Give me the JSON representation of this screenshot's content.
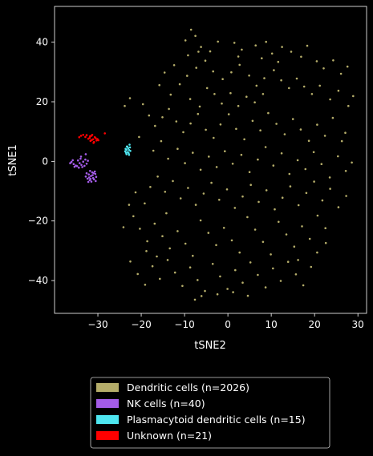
{
  "chart_data": {
    "type": "scatter",
    "title": "",
    "xlabel": "tSNE2",
    "ylabel": "tSNE1",
    "xlim": [
      -40,
      32
    ],
    "ylim": [
      -51,
      52
    ],
    "xticks": [
      -30,
      -20,
      -10,
      0,
      10,
      20,
      30
    ],
    "yticks": [
      -40,
      -20,
      0,
      20,
      40
    ],
    "grid": false,
    "background": "#000000",
    "legend_position": "bottom-center",
    "series": [
      {
        "name": "Dendritic cells (n=2026)",
        "color": "#b5ad6a",
        "count": 2026,
        "points": [
          [
            -8.5,
            44.2
          ],
          [
            -7.5,
            42.1
          ],
          [
            -9.8,
            40.6
          ],
          [
            -6.2,
            38.4
          ],
          [
            -4.1,
            36.9
          ],
          [
            -2.3,
            40.2
          ],
          [
            1.5,
            39.8
          ],
          [
            3.2,
            37.5
          ],
          [
            6.4,
            38.9
          ],
          [
            8.8,
            40.1
          ],
          [
            10.2,
            36.2
          ],
          [
            12.5,
            38.4
          ],
          [
            14.6,
            36.8
          ],
          [
            16.9,
            35.1
          ],
          [
            18.3,
            38.8
          ],
          [
            20.5,
            33.6
          ],
          [
            22.1,
            31.2
          ],
          [
            24.3,
            33.9
          ],
          [
            26.1,
            29.4
          ],
          [
            27.6,
            31.8
          ],
          [
            -12.4,
            32.3
          ],
          [
            -14.6,
            29.8
          ],
          [
            -15.8,
            25.6
          ],
          [
            -13.2,
            22.4
          ],
          [
            -11.1,
            25.9
          ],
          [
            -9.4,
            28.7
          ],
          [
            -7.3,
            31.4
          ],
          [
            -5.2,
            33.8
          ],
          [
            -3.4,
            30.2
          ],
          [
            -1.2,
            27.6
          ],
          [
            0.8,
            29.9
          ],
          [
            2.7,
            32.4
          ],
          [
            4.9,
            28.8
          ],
          [
            6.6,
            25.4
          ],
          [
            8.4,
            27.9
          ],
          [
            10.6,
            30.6
          ],
          [
            12.3,
            27.2
          ],
          [
            14.1,
            24.6
          ],
          [
            15.9,
            27.8
          ],
          [
            17.6,
            25.1
          ],
          [
            19.4,
            22.6
          ],
          [
            21.2,
            25.4
          ],
          [
            23.6,
            20.8
          ],
          [
            25.5,
            23.7
          ],
          [
            27.8,
            18.6
          ],
          [
            28.9,
            21.9
          ],
          [
            -18.2,
            15.4
          ],
          [
            -16.8,
            11.9
          ],
          [
            -15.1,
            14.8
          ],
          [
            -13.6,
            17.6
          ],
          [
            -11.9,
            13.4
          ],
          [
            -10.3,
            9.8
          ],
          [
            -8.6,
            12.7
          ],
          [
            -6.9,
            15.9
          ],
          [
            -5.1,
            10.6
          ],
          [
            -3.3,
            7.9
          ],
          [
            -1.7,
            12.4
          ],
          [
            0.2,
            15.8
          ],
          [
            1.9,
            10.9
          ],
          [
            3.8,
            7.4
          ],
          [
            5.7,
            13.6
          ],
          [
            7.5,
            10.4
          ],
          [
            9.3,
            16.2
          ],
          [
            11.2,
            12.6
          ],
          [
            13.1,
            9.1
          ],
          [
            15.0,
            14.2
          ],
          [
            16.8,
            10.7
          ],
          [
            18.7,
            6.9
          ],
          [
            20.6,
            12.3
          ],
          [
            22.4,
            8.6
          ],
          [
            24.2,
            14.6
          ],
          [
            26.3,
            6.8
          ],
          [
            27.1,
            9.6
          ],
          [
            -23.8,
            18.6
          ],
          [
            -22.6,
            21.2
          ],
          [
            -19.6,
            19.2
          ],
          [
            -20.5,
            8.2
          ],
          [
            -17.2,
            3.6
          ],
          [
            -15.4,
            6.8
          ],
          [
            -13.8,
            0.9
          ],
          [
            -11.6,
            4.2
          ],
          [
            -9.9,
            -0.6
          ],
          [
            -8.1,
            2.9
          ],
          [
            -6.3,
            -2.8
          ],
          [
            -4.4,
            1.6
          ],
          [
            -2.6,
            -1.9
          ],
          [
            -0.7,
            3.4
          ],
          [
            1.1,
            -0.8
          ],
          [
            3.1,
            2.2
          ],
          [
            5.0,
            -3.6
          ],
          [
            6.9,
            0.6
          ],
          [
            8.7,
            4.8
          ],
          [
            10.5,
            -1.4
          ],
          [
            12.4,
            2.7
          ],
          [
            14.2,
            -4.2
          ],
          [
            16.1,
            0.4
          ],
          [
            17.9,
            -2.6
          ],
          [
            19.8,
            3.1
          ],
          [
            21.6,
            -0.9
          ],
          [
            23.5,
            -5.4
          ],
          [
            25.4,
            1.7
          ],
          [
            27.2,
            -3.2
          ],
          [
            28.6,
            -0.4
          ],
          [
            -17.9,
            -8.6
          ],
          [
            -16.2,
            -5.1
          ],
          [
            -14.5,
            -10.2
          ],
          [
            -12.7,
            -6.6
          ],
          [
            -10.9,
            -12.4
          ],
          [
            -9.2,
            -8.9
          ],
          [
            -7.4,
            -14.6
          ],
          [
            -5.6,
            -10.8
          ],
          [
            -3.8,
            -7.2
          ],
          [
            -2.0,
            -12.9
          ],
          [
            -0.2,
            -9.4
          ],
          [
            1.6,
            -15.6
          ],
          [
            3.4,
            -11.8
          ],
          [
            5.3,
            -7.9
          ],
          [
            7.1,
            -13.6
          ],
          [
            8.9,
            -9.7
          ],
          [
            10.8,
            -16.1
          ],
          [
            12.6,
            -12.2
          ],
          [
            14.4,
            -8.4
          ],
          [
            16.3,
            -14.7
          ],
          [
            18.1,
            -10.6
          ],
          [
            19.9,
            -6.8
          ],
          [
            21.8,
            -13.1
          ],
          [
            23.6,
            -9.2
          ],
          [
            25.5,
            -15.4
          ],
          [
            27.3,
            -11.6
          ],
          [
            -21.8,
            -18.4
          ],
          [
            -20.3,
            -22.6
          ],
          [
            -18.6,
            -26.8
          ],
          [
            -16.9,
            -20.9
          ],
          [
            -15.1,
            -25.1
          ],
          [
            -13.4,
            -29.2
          ],
          [
            -11.6,
            -23.4
          ],
          [
            -9.8,
            -27.6
          ],
          [
            -8.1,
            -31.7
          ],
          [
            -6.3,
            -19.8
          ],
          [
            -4.5,
            -24.0
          ],
          [
            -2.7,
            -28.1
          ],
          [
            -0.9,
            -22.3
          ],
          [
            0.9,
            -26.5
          ],
          [
            2.7,
            -30.6
          ],
          [
            4.5,
            -18.7
          ],
          [
            6.3,
            -22.9
          ],
          [
            8.1,
            -27.0
          ],
          [
            9.9,
            -31.2
          ],
          [
            11.7,
            -20.3
          ],
          [
            13.5,
            -24.5
          ],
          [
            15.3,
            -28.6
          ],
          [
            17.1,
            -21.8
          ],
          [
            18.9,
            -26.0
          ],
          [
            20.7,
            -18.2
          ],
          [
            22.5,
            -22.4
          ],
          [
            -22.5,
            -33.6
          ],
          [
            -20.8,
            -37.8
          ],
          [
            -19.1,
            -41.4
          ],
          [
            -17.4,
            -35.2
          ],
          [
            -15.7,
            -39.4
          ],
          [
            -13.9,
            -33.1
          ],
          [
            -12.2,
            -37.3
          ],
          [
            -10.5,
            -41.8
          ],
          [
            -8.7,
            -35.6
          ],
          [
            -7.0,
            -39.8
          ],
          [
            -5.3,
            -43.5
          ],
          [
            -3.5,
            -34.4
          ],
          [
            -1.8,
            -38.6
          ],
          [
            -0.1,
            -42.8
          ],
          [
            1.7,
            -36.5
          ],
          [
            3.4,
            -40.7
          ],
          [
            5.2,
            -33.9
          ],
          [
            6.9,
            -38.1
          ],
          [
            8.7,
            -42.3
          ],
          [
            10.4,
            -35.9
          ],
          [
            12.2,
            -40.1
          ],
          [
            13.9,
            -33.7
          ],
          [
            15.7,
            -37.9
          ],
          [
            17.4,
            -41.6
          ],
          [
            19.2,
            -35.4
          ],
          [
            -7.6,
            -46.4
          ],
          [
            -6.1,
            -45.2
          ],
          [
            -2.4,
            -44.6
          ],
          [
            1.2,
            -43.9
          ],
          [
            4.6,
            -45.1
          ],
          [
            -9.2,
            35.6
          ],
          [
            -6.8,
            36.8
          ],
          [
            2.4,
            35.2
          ],
          [
            7.8,
            34.6
          ],
          [
            11.6,
            33.4
          ],
          [
            -3.1,
            22.6
          ],
          [
            -1.4,
            19.4
          ],
          [
            0.6,
            22.9
          ],
          [
            2.4,
            18.6
          ],
          [
            4.3,
            21.7
          ],
          [
            -8.7,
            20.9
          ],
          [
            -6.5,
            18.4
          ],
          [
            -4.8,
            24.6
          ],
          [
            6.2,
            19.8
          ],
          [
            8.1,
            22.6
          ],
          [
            -19.2,
            -14.1
          ],
          [
            -21.3,
            -10.4
          ],
          [
            -22.8,
            -14.6
          ],
          [
            -24.1,
            -22.1
          ],
          [
            -18.8,
            -30.1
          ],
          [
            -16.4,
            -31.9
          ],
          [
            -14.2,
            -17.4
          ],
          [
            20.6,
            -30.6
          ],
          [
            22.6,
            -27.4
          ],
          [
            16.2,
            -33.1
          ]
        ]
      },
      {
        "name": "NK cells (n=40)",
        "color": "#a45ce8",
        "count": 40,
        "points": [
          [
            -36.1,
            -0.2
          ],
          [
            -35.6,
            -0.9
          ],
          [
            -35.1,
            -1.4
          ],
          [
            -34.6,
            0.3
          ],
          [
            -34.2,
            -0.6
          ],
          [
            -33.8,
            -1.2
          ],
          [
            -33.4,
            -0.1
          ],
          [
            -32.9,
            0.6
          ],
          [
            -35.4,
            -1.8
          ],
          [
            -34.8,
            -1.6
          ],
          [
            -33.6,
            -1.9
          ],
          [
            -32.6,
            -0.8
          ],
          [
            -34.0,
            0.9
          ],
          [
            -35.8,
            0.4
          ],
          [
            -33.1,
            -1.5
          ],
          [
            -36.4,
            -0.6
          ],
          [
            -34.4,
            -2.1
          ],
          [
            -32.3,
            0.2
          ],
          [
            -33.9,
            1.6
          ],
          [
            -32.8,
            2.4
          ],
          [
            -32.1,
            -4.4
          ],
          [
            -31.6,
            -4.9
          ],
          [
            -31.1,
            -5.6
          ],
          [
            -30.6,
            -4.2
          ],
          [
            -32.4,
            -5.8
          ],
          [
            -31.9,
            -6.3
          ],
          [
            -31.3,
            -3.7
          ],
          [
            -30.9,
            -6.0
          ],
          [
            -32.6,
            -4.0
          ],
          [
            -30.4,
            -5.2
          ],
          [
            -31.5,
            -6.8
          ],
          [
            -32.8,
            -5.1
          ],
          [
            -30.7,
            -3.4
          ],
          [
            -31.8,
            -3.2
          ],
          [
            -32.2,
            -6.9
          ],
          [
            -30.5,
            -6.6
          ],
          [
            -31.2,
            -4.6
          ],
          [
            -32.0,
            -5.4
          ],
          [
            -31.0,
            -3.9
          ],
          [
            -31.7,
            -5.9
          ]
        ]
      },
      {
        "name": "Plasmacytoid dendritic cells (n=15)",
        "color": "#4ee6f0",
        "count": 15,
        "points": [
          [
            -23.4,
            2.4
          ],
          [
            -23.1,
            3.1
          ],
          [
            -22.8,
            3.8
          ],
          [
            -23.6,
            4.2
          ],
          [
            -22.6,
            4.7
          ],
          [
            -23.3,
            5.0
          ],
          [
            -22.9,
            2.7
          ],
          [
            -23.7,
            3.4
          ],
          [
            -22.7,
            5.6
          ],
          [
            -23.0,
            4.4
          ],
          [
            -23.5,
            2.9
          ],
          [
            -22.5,
            3.5
          ],
          [
            -23.2,
            4.9
          ],
          [
            -22.8,
            2.2
          ],
          [
            -23.4,
            3.9
          ]
        ]
      },
      {
        "name": "Unknown (n=21)",
        "color": "#ff0000",
        "count": 21,
        "points": [
          [
            -33.9,
            8.6
          ],
          [
            -33.4,
            8.9
          ],
          [
            -32.9,
            8.2
          ],
          [
            -31.9,
            7.9
          ],
          [
            -31.5,
            8.6
          ],
          [
            -31.1,
            7.4
          ],
          [
            -30.7,
            8.1
          ],
          [
            -30.3,
            7.0
          ],
          [
            -31.7,
            6.9
          ],
          [
            -32.2,
            7.6
          ],
          [
            -30.9,
            6.5
          ],
          [
            -31.3,
            8.9
          ],
          [
            -30.5,
            7.8
          ],
          [
            -32.6,
            8.8
          ],
          [
            -31.4,
            7.2
          ],
          [
            -30.1,
            7.5
          ],
          [
            -28.4,
            9.4
          ],
          [
            -31.8,
            8.4
          ],
          [
            -29.9,
            7.1
          ],
          [
            -34.3,
            8.1
          ],
          [
            -31.0,
            6.2
          ]
        ]
      }
    ]
  }
}
